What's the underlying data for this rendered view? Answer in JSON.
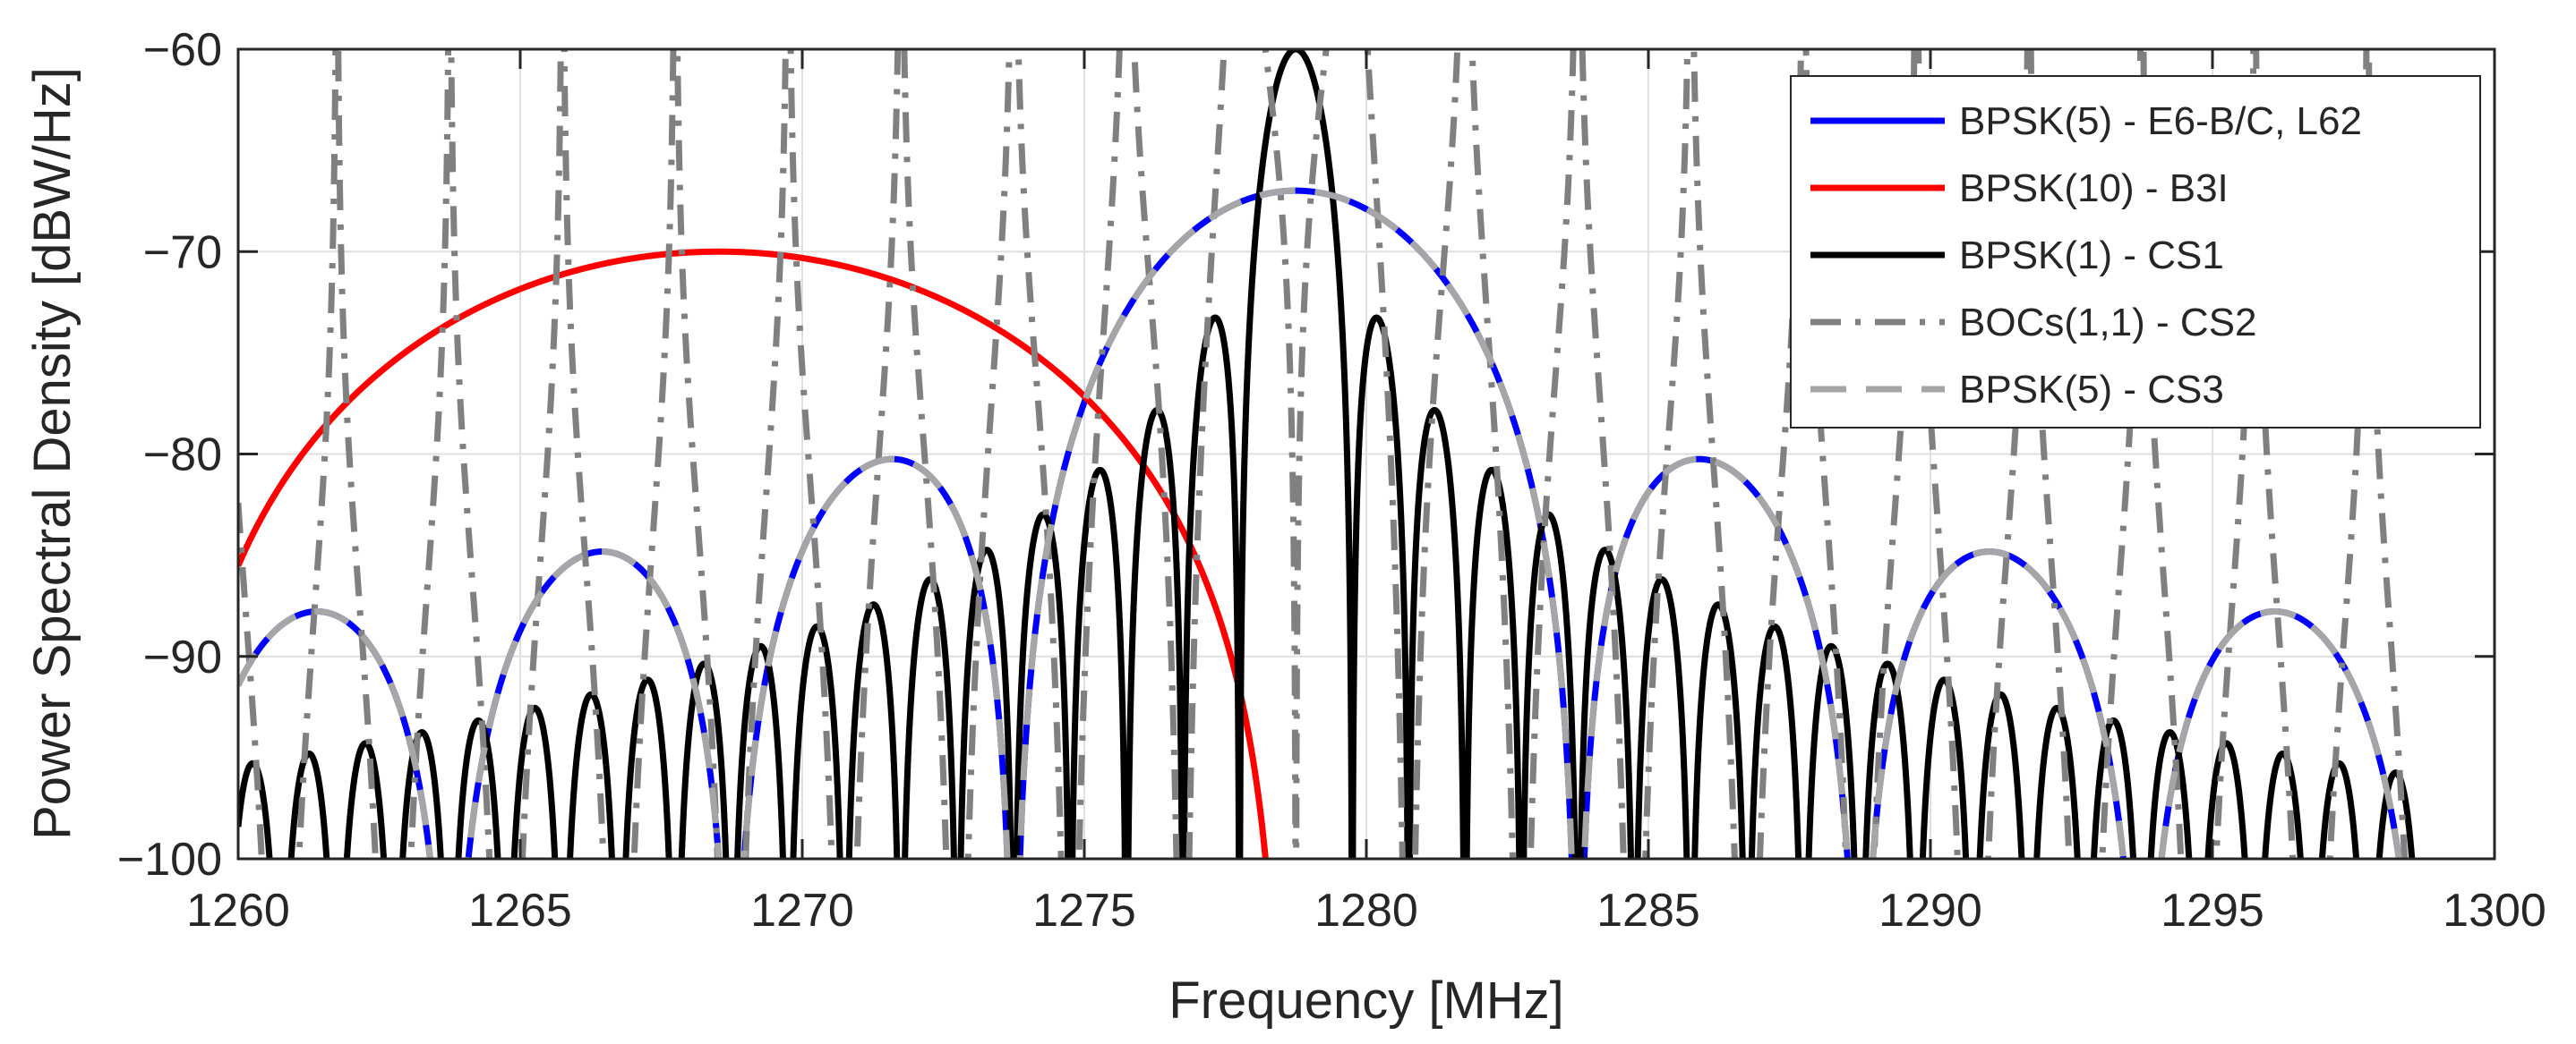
{
  "chart_data": {
    "type": "line",
    "title": "",
    "xlabel": "Frequency [MHz]",
    "ylabel": "Power Spectral Density [dBW/Hz]",
    "xlim": [
      1260,
      1300
    ],
    "ylim": [
      -100,
      -60
    ],
    "xticks": [
      1260,
      1265,
      1270,
      1275,
      1280,
      1285,
      1290,
      1295,
      1300
    ],
    "yticks": [
      -100,
      -90,
      -80,
      -70,
      -60
    ],
    "grid": true,
    "legend_position": "top-right",
    "center_frequency": 1278.75,
    "series": [
      {
        "name": "BPSK(5) - E6-B/C, L62",
        "kind": "bpsk",
        "chip_rate_mhz": 5,
        "center_mhz": 1278.75,
        "range_mhz": [
          1260,
          1298.75
        ],
        "color": "#0000ff",
        "dash": "solid",
        "width": 7
      },
      {
        "name": "BPSK(10) - B3I",
        "kind": "bpsk",
        "chip_rate_mhz": 10,
        "center_mhz": 1268.52,
        "range_mhz": [
          1260,
          1278.52
        ],
        "color": "#ff0000",
        "dash": "solid",
        "width": 7
      },
      {
        "name": "BPSK(1) - CS1",
        "kind": "bpsk",
        "chip_rate_mhz": 1,
        "center_mhz": 1278.75,
        "range_mhz": [
          1260,
          1298.75
        ],
        "color": "#000000",
        "dash": "solid",
        "width": 7
      },
      {
        "name": "BOCs(1,1) - CS2",
        "kind": "boc",
        "chip_rate_mhz": 1,
        "center_mhz": 1278.75,
        "range_mhz": [
          1260,
          1298.75
        ],
        "color": "#808080",
        "dash": "dashdot",
        "width": 7
      },
      {
        "name": "BPSK(5) - CS3",
        "kind": "bpsk",
        "chip_rate_mhz": 5,
        "center_mhz": 1278.75,
        "range_mhz": [
          1260,
          1298.75
        ],
        "color": "#a6a6a6",
        "dash": "dash",
        "width": 7
      }
    ]
  }
}
